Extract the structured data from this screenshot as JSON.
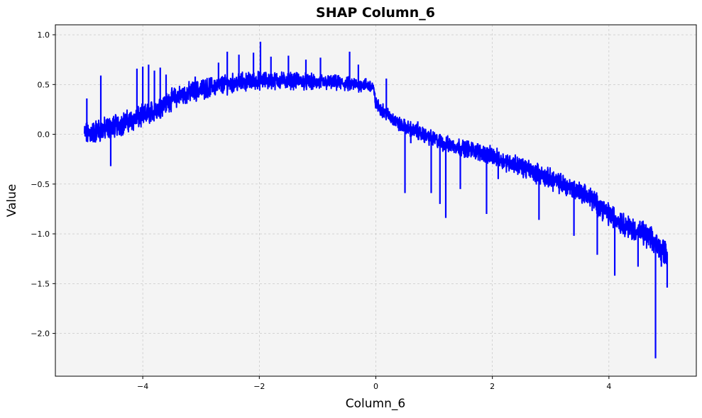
{
  "chart_data": {
    "type": "line",
    "title": "SHAP Column_6",
    "xlabel": "Column_6",
    "ylabel": "Value",
    "xlim": [
      -5.5,
      5.5
    ],
    "ylim": [
      -2.43,
      1.1
    ],
    "xticks": [
      -4,
      -2,
      0,
      2,
      4
    ],
    "xtick_labels": [
      "−4",
      "−2",
      "0",
      "2",
      "4"
    ],
    "yticks": [
      -2.0,
      -1.5,
      -1.0,
      -0.5,
      0.0,
      0.5,
      1.0
    ],
    "ytick_labels": [
      "−2.0",
      "−1.5",
      "−1.0",
      "−0.5",
      "0.0",
      "0.5",
      "1.0"
    ],
    "grid": true,
    "colors": {
      "line": "#0000ff",
      "plot_bg": "#f4f4f4",
      "grid": "#bfbfbf"
    },
    "series": [
      {
        "x": [
          -5.0,
          -4.8,
          -4.6,
          -4.4,
          -4.2,
          -4.0,
          -3.8,
          -3.6,
          -3.4,
          -3.2,
          -3.0,
          -2.8,
          -2.6,
          -2.4,
          -2.2,
          -2.0,
          -1.8,
          -1.6,
          -1.4,
          -1.2,
          -1.0,
          -0.8,
          -0.6,
          -0.4,
          -0.2,
          -0.05,
          0.0,
          0.2,
          0.4,
          0.6,
          0.8,
          1.0,
          1.2,
          1.4,
          1.6,
          1.8,
          2.0,
          2.2,
          2.4,
          2.6,
          2.8,
          3.0,
          3.2,
          3.4,
          3.6,
          3.8,
          4.0,
          4.2,
          4.4,
          4.6,
          4.8,
          5.0
        ],
        "values": [
          0.0,
          0.03,
          0.06,
          0.1,
          0.14,
          0.18,
          0.24,
          0.32,
          0.38,
          0.42,
          0.45,
          0.48,
          0.5,
          0.52,
          0.53,
          0.54,
          0.54,
          0.54,
          0.54,
          0.53,
          0.52,
          0.52,
          0.51,
          0.5,
          0.5,
          0.48,
          0.3,
          0.2,
          0.1,
          0.05,
          0.0,
          -0.05,
          -0.1,
          -0.12,
          -0.15,
          -0.18,
          -0.22,
          -0.27,
          -0.3,
          -0.35,
          -0.4,
          -0.45,
          -0.5,
          -0.55,
          -0.6,
          -0.7,
          -0.8,
          -0.88,
          -0.95,
          -1.0,
          -1.1,
          -1.2
        ]
      }
    ],
    "spikes": [
      {
        "x": -4.96,
        "y": 0.36
      },
      {
        "x": -4.85,
        "y": -0.08
      },
      {
        "x": -4.72,
        "y": 0.59
      },
      {
        "x": -4.55,
        "y": -0.32
      },
      {
        "x": -4.1,
        "y": 0.66
      },
      {
        "x": -4.0,
        "y": 0.68
      },
      {
        "x": -3.9,
        "y": 0.7
      },
      {
        "x": -3.8,
        "y": 0.64
      },
      {
        "x": -3.7,
        "y": 0.67
      },
      {
        "x": -3.6,
        "y": 0.6
      },
      {
        "x": -3.1,
        "y": 0.58
      },
      {
        "x": -2.7,
        "y": 0.72
      },
      {
        "x": -2.55,
        "y": 0.83
      },
      {
        "x": -2.35,
        "y": 0.8
      },
      {
        "x": -2.1,
        "y": 0.82
      },
      {
        "x": -1.98,
        "y": 0.93
      },
      {
        "x": -1.8,
        "y": 0.78
      },
      {
        "x": -1.5,
        "y": 0.79
      },
      {
        "x": -1.2,
        "y": 0.75
      },
      {
        "x": -0.95,
        "y": 0.77
      },
      {
        "x": -0.45,
        "y": 0.83
      },
      {
        "x": -0.3,
        "y": 0.7
      },
      {
        "x": 0.18,
        "y": 0.56
      },
      {
        "x": 0.5,
        "y": -0.59
      },
      {
        "x": 0.6,
        "y": -0.09
      },
      {
        "x": 0.72,
        "y": 0.13
      },
      {
        "x": 0.95,
        "y": -0.59
      },
      {
        "x": 1.1,
        "y": -0.7
      },
      {
        "x": 1.2,
        "y": -0.84
      },
      {
        "x": 1.45,
        "y": -0.55
      },
      {
        "x": 1.9,
        "y": -0.8
      },
      {
        "x": 2.1,
        "y": -0.45
      },
      {
        "x": 2.4,
        "y": -0.35
      },
      {
        "x": 2.8,
        "y": -0.86
      },
      {
        "x": 3.4,
        "y": -1.02
      },
      {
        "x": 3.8,
        "y": -1.21
      },
      {
        "x": 4.1,
        "y": -1.42
      },
      {
        "x": 4.5,
        "y": -1.33
      },
      {
        "x": 4.8,
        "y": -2.25
      },
      {
        "x": 4.9,
        "y": -1.33
      },
      {
        "x": 5.0,
        "y": -1.54
      }
    ]
  }
}
